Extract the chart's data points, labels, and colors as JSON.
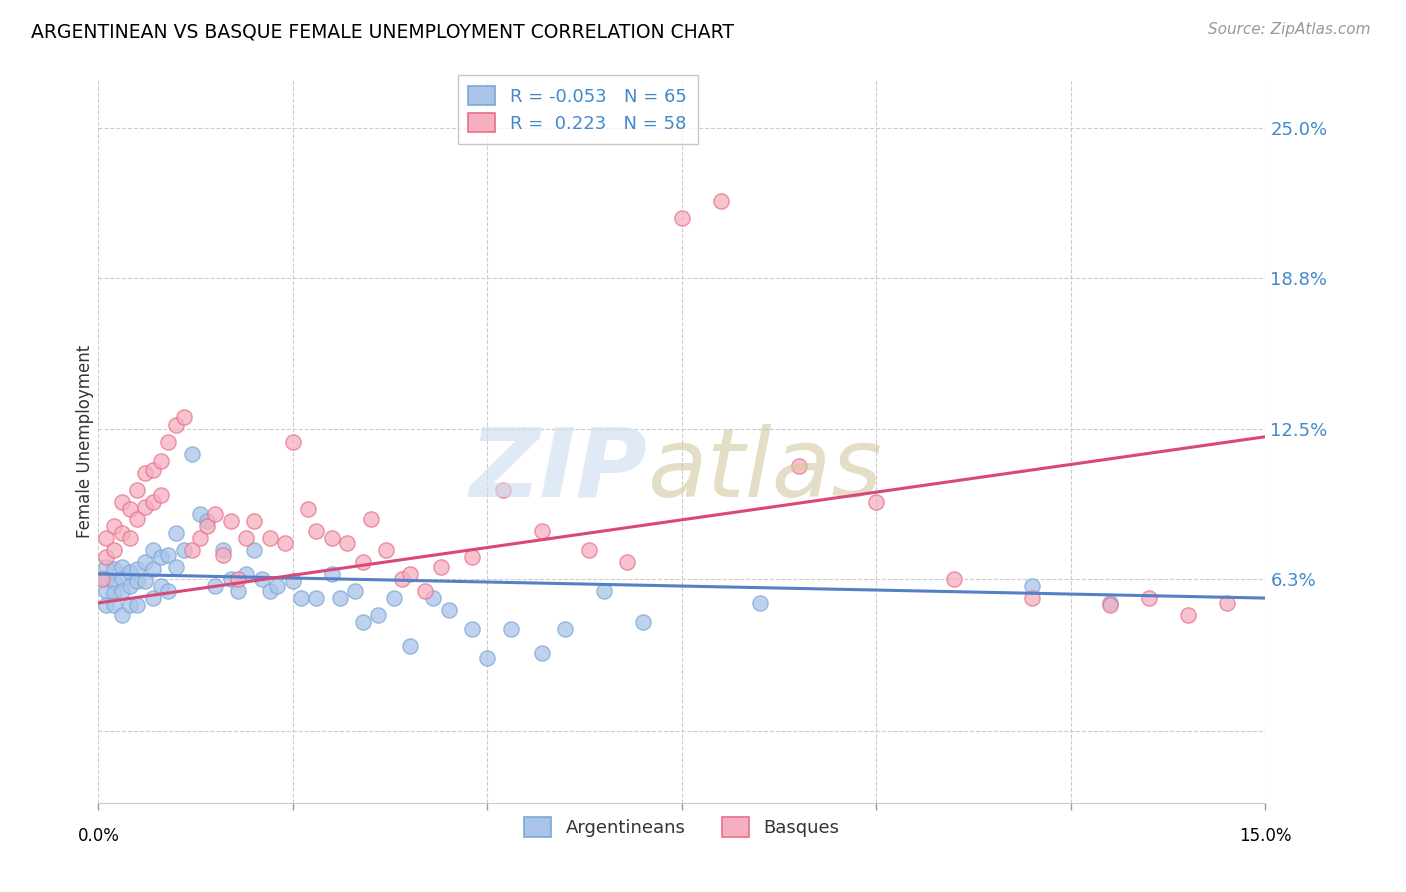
{
  "title": "ARGENTINEAN VS BASQUE FEMALE UNEMPLOYMENT CORRELATION CHART",
  "source": "Source: ZipAtlas.com",
  "ylabel": "Female Unemployment",
  "xlim": [
    0.0,
    0.15
  ],
  "ylim": [
    -0.03,
    0.27
  ],
  "argentinean_color": "#aac4e8",
  "basque_color": "#f5afc0",
  "argentinean_edge_color": "#7ba8d8",
  "basque_edge_color": "#e8708a",
  "argentinean_line_color": "#5580c8",
  "basque_line_color": "#d84878",
  "legend_r_arg": "-0.053",
  "legend_n_arg": "65",
  "legend_r_bas": "0.223",
  "legend_n_bas": "58",
  "ytick_vals": [
    0.0,
    0.063,
    0.125,
    0.188,
    0.25
  ],
  "ytick_labels": [
    "",
    "6.3%",
    "12.5%",
    "18.8%",
    "25.0%"
  ],
  "xtick_vals": [
    0.0,
    0.025,
    0.05,
    0.075,
    0.1,
    0.125,
    0.15
  ],
  "arg_trend_start_y": 0.065,
  "arg_trend_end_y": 0.055,
  "bas_trend_start_y": 0.053,
  "bas_trend_end_y": 0.122,
  "arg_x": [
    0.0005,
    0.001,
    0.001,
    0.001,
    0.001,
    0.002,
    0.002,
    0.002,
    0.002,
    0.003,
    0.003,
    0.003,
    0.003,
    0.004,
    0.004,
    0.004,
    0.005,
    0.005,
    0.005,
    0.006,
    0.006,
    0.007,
    0.007,
    0.007,
    0.008,
    0.008,
    0.009,
    0.009,
    0.01,
    0.01,
    0.011,
    0.012,
    0.013,
    0.014,
    0.015,
    0.016,
    0.017,
    0.018,
    0.019,
    0.02,
    0.021,
    0.022,
    0.023,
    0.025,
    0.026,
    0.028,
    0.03,
    0.031,
    0.033,
    0.034,
    0.036,
    0.038,
    0.04,
    0.043,
    0.045,
    0.048,
    0.05,
    0.053,
    0.057,
    0.06,
    0.065,
    0.07,
    0.085,
    0.12,
    0.13
  ],
  "arg_y": [
    0.063,
    0.068,
    0.063,
    0.058,
    0.052,
    0.067,
    0.062,
    0.057,
    0.052,
    0.068,
    0.063,
    0.058,
    0.048,
    0.066,
    0.06,
    0.052,
    0.067,
    0.062,
    0.052,
    0.07,
    0.062,
    0.075,
    0.067,
    0.055,
    0.072,
    0.06,
    0.073,
    0.058,
    0.082,
    0.068,
    0.075,
    0.115,
    0.09,
    0.087,
    0.06,
    0.075,
    0.063,
    0.058,
    0.065,
    0.075,
    0.063,
    0.058,
    0.06,
    0.062,
    0.055,
    0.055,
    0.065,
    0.055,
    0.058,
    0.045,
    0.048,
    0.055,
    0.035,
    0.055,
    0.05,
    0.042,
    0.03,
    0.042,
    0.032,
    0.042,
    0.058,
    0.045,
    0.053,
    0.06,
    0.053
  ],
  "bas_x": [
    0.0005,
    0.001,
    0.001,
    0.002,
    0.002,
    0.003,
    0.003,
    0.004,
    0.004,
    0.005,
    0.005,
    0.006,
    0.006,
    0.007,
    0.007,
    0.008,
    0.008,
    0.009,
    0.01,
    0.011,
    0.012,
    0.013,
    0.014,
    0.015,
    0.016,
    0.017,
    0.018,
    0.019,
    0.02,
    0.022,
    0.024,
    0.025,
    0.027,
    0.028,
    0.03,
    0.032,
    0.034,
    0.035,
    0.037,
    0.039,
    0.04,
    0.042,
    0.044,
    0.048,
    0.052,
    0.057,
    0.063,
    0.068,
    0.075,
    0.08,
    0.09,
    0.1,
    0.11,
    0.12,
    0.13,
    0.135,
    0.14,
    0.145
  ],
  "bas_y": [
    0.063,
    0.08,
    0.072,
    0.085,
    0.075,
    0.095,
    0.082,
    0.092,
    0.08,
    0.1,
    0.088,
    0.107,
    0.093,
    0.108,
    0.095,
    0.112,
    0.098,
    0.12,
    0.127,
    0.13,
    0.075,
    0.08,
    0.085,
    0.09,
    0.073,
    0.087,
    0.063,
    0.08,
    0.087,
    0.08,
    0.078,
    0.12,
    0.092,
    0.083,
    0.08,
    0.078,
    0.07,
    0.088,
    0.075,
    0.063,
    0.065,
    0.058,
    0.068,
    0.072,
    0.1,
    0.083,
    0.075,
    0.07,
    0.213,
    0.22,
    0.11,
    0.095,
    0.063,
    0.055,
    0.052,
    0.055,
    0.048,
    0.053
  ]
}
